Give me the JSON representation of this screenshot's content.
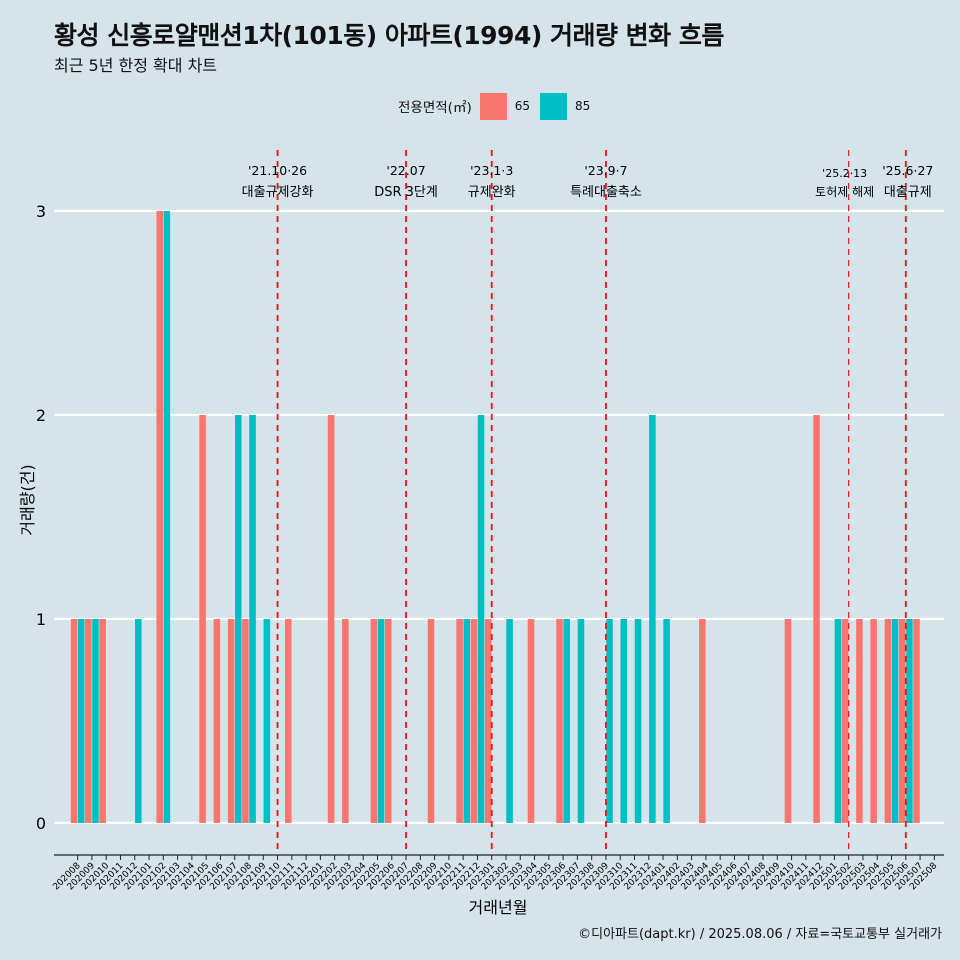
{
  "title": "황성 신흥로얄맨션1차(101동) 아파트(1994) 거래량 변화 흐름",
  "subtitle": "최근 5년 한정 확대 차트",
  "caption": "©디아파트(dapt.kr) / 2025.08.06 / 자료=국토교통부 실거래가",
  "chart_data": {
    "type": "bar",
    "xlabel": "거래년월",
    "ylabel": "거래량(건)",
    "ylim": [
      0,
      3
    ],
    "y_ticks": [
      "0",
      "1",
      "2",
      "3"
    ],
    "legend": {
      "title": "전용면적(㎡)",
      "position": "top",
      "entries": [
        {
          "label": "65",
          "color": "#f8766d"
        },
        {
          "label": "85",
          "color": "#00bfc4"
        }
      ]
    },
    "categories": [
      "202008",
      "202009",
      "202010",
      "202011",
      "202012",
      "202101",
      "202102",
      "202103",
      "202104",
      "202105",
      "202106",
      "202107",
      "202108",
      "202109",
      "202110",
      "202111",
      "202112",
      "202201",
      "202202",
      "202203",
      "202204",
      "202205",
      "202206",
      "202207",
      "202208",
      "202209",
      "202210",
      "202211",
      "202212",
      "202301",
      "202302",
      "202303",
      "202304",
      "202305",
      "202306",
      "202307",
      "202308",
      "202309",
      "202310",
      "202311",
      "202312",
      "202401",
      "202402",
      "202403",
      "202404",
      "202405",
      "202406",
      "202407",
      "202408",
      "202409",
      "202410",
      "202411",
      "202412",
      "202501",
      "202502",
      "202503",
      "202504",
      "202505",
      "202506",
      "202507",
      "202508"
    ],
    "series": [
      {
        "name": "65",
        "color": "#f8766d",
        "values": [
          1,
          1,
          1,
          0,
          0,
          0,
          3,
          0,
          0,
          2,
          1,
          1,
          1,
          0,
          0,
          1,
          0,
          0,
          2,
          1,
          0,
          1,
          1,
          0,
          0,
          1,
          0,
          1,
          1,
          1,
          0,
          0,
          1,
          0,
          1,
          0,
          0,
          0,
          0,
          0,
          0,
          0,
          0,
          0,
          1,
          0,
          0,
          0,
          0,
          0,
          1,
          0,
          2,
          0,
          1,
          1,
          1,
          1,
          1,
          1,
          0
        ]
      },
      {
        "name": "85",
        "color": "#00bfc4",
        "values": [
          1,
          1,
          0,
          0,
          1,
          0,
          3,
          0,
          0,
          0,
          0,
          2,
          2,
          1,
          0,
          0,
          0,
          0,
          0,
          0,
          0,
          1,
          0,
          0,
          0,
          0,
          0,
          1,
          2,
          0,
          1,
          0,
          0,
          0,
          1,
          1,
          0,
          1,
          1,
          1,
          2,
          1,
          0,
          0,
          0,
          0,
          0,
          0,
          0,
          0,
          0,
          0,
          0,
          1,
          0,
          0,
          0,
          1,
          1,
          0,
          0
        ]
      }
    ],
    "annotations": [
      {
        "date": "'21.10·26",
        "label": "대출규제강화",
        "month": "202110"
      },
      {
        "date": "'22.07",
        "label": "DSR 3단계",
        "month": "202207"
      },
      {
        "date": "'23.1·3",
        "label": "규제완화",
        "month": "202301"
      },
      {
        "date": "'23.9·7",
        "label": "특례대출축소",
        "month": "202309"
      },
      {
        "date": "'25.2·13",
        "label": "토허제 해제",
        "month": "202502"
      },
      {
        "date": "'25.6·27",
        "label": "대출규제",
        "month": "202506"
      }
    ]
  }
}
